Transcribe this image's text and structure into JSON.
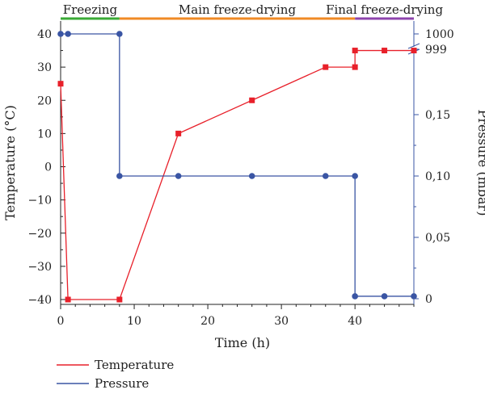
{
  "chart_data": {
    "type": "line",
    "xlabel": "Time (h)",
    "xlim": [
      0,
      48
    ],
    "x_ticks": [
      "0",
      "10",
      "20",
      "30",
      "40"
    ],
    "ylabel_left": "Temperature (°C)",
    "ylim_left": [
      -42,
      42
    ],
    "y_ticks_left": [
      "40",
      "30",
      "20",
      "10",
      "0",
      "−10",
      "−20",
      "−30",
      "−40"
    ],
    "ylabel_right": "Pressure (mbar)",
    "y_ticks_right": [
      "1000",
      "999",
      "0,15",
      "0,10",
      "0,05",
      "0"
    ],
    "phases": [
      {
        "name": "Freezing",
        "start": 0,
        "end": 8,
        "color": "#3aaa35"
      },
      {
        "name": "Main freeze-drying",
        "start": 8,
        "end": 40,
        "color": "#f08a24"
      },
      {
        "name": "Final freeze-drying",
        "start": 40,
        "end": 48,
        "color": "#8e44ad"
      }
    ],
    "series": [
      {
        "name": "Temperature",
        "axis": "left",
        "color": "#e8202a",
        "marker": "square",
        "points": [
          [
            0,
            25
          ],
          [
            1,
            -40
          ],
          [
            8,
            -40
          ],
          [
            16,
            10
          ],
          [
            26,
            20
          ],
          [
            36,
            30
          ],
          [
            40,
            30
          ],
          [
            40,
            35
          ],
          [
            44,
            35
          ],
          [
            48,
            35
          ]
        ]
      },
      {
        "name": "Pressure",
        "axis": "right",
        "color": "#3a55a4",
        "marker": "circle",
        "points": [
          [
            0,
            1000
          ],
          [
            1,
            1000
          ],
          [
            8,
            1000
          ],
          [
            8,
            0.1
          ],
          [
            16,
            0.1
          ],
          [
            26,
            0.1
          ],
          [
            36,
            0.1
          ],
          [
            40,
            0.1
          ],
          [
            40,
            0.002
          ],
          [
            44,
            0.002
          ],
          [
            48,
            0.002
          ]
        ]
      }
    ],
    "legend_position": "bottom-left"
  }
}
